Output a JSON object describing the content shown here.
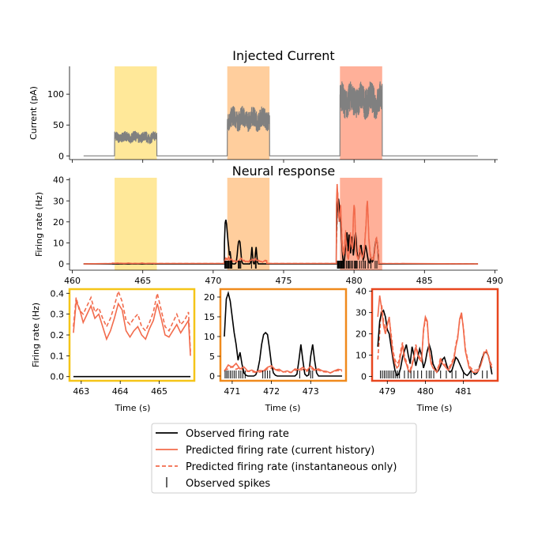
{
  "colors": {
    "current_line": "#808080",
    "observed": "#000000",
    "predicted": "#f26b4c",
    "epoch1": "#ffe793",
    "epoch2": "#ffcb98",
    "epoch3": "#ffac94",
    "inset1_border": "#f5c518",
    "inset2_border": "#f08a1c",
    "inset3_border": "#e8461e"
  },
  "chart_data": [
    {
      "type": "line",
      "title": "Injected Current",
      "xlabel": "",
      "ylabel": "Current (pA)",
      "xlim": [
        459.8,
        490.2
      ],
      "ylim": [
        -6,
        145
      ],
      "yticks": [
        "0",
        "50",
        "100"
      ],
      "epochs": [
        [
          463,
          466
        ],
        [
          471,
          474
        ],
        [
          479,
          482
        ]
      ],
      "current_levels": [
        30,
        60,
        90
      ],
      "baseline": 0,
      "x_range": [
        460.8,
        488.8
      ]
    },
    {
      "type": "line",
      "title": "Neural response",
      "xlabel": "",
      "ylabel": "Firing rate (Hz)",
      "xlim": [
        459.8,
        490.2
      ],
      "ylim": [
        -3,
        41
      ],
      "xticks": [
        "460",
        "465",
        "470",
        "475",
        "480",
        "485",
        "490"
      ],
      "yticks": [
        "0",
        "10",
        "20",
        "30",
        "40"
      ],
      "epochs": [
        [
          463,
          466
        ],
        [
          471,
          474
        ],
        [
          479,
          482
        ]
      ]
    },
    {
      "type": "line",
      "title": "",
      "xlabel": "Time (s)",
      "ylabel": "Firing rate (Hz)",
      "xlim": [
        462.7,
        465.9
      ],
      "ylim": [
        -0.02,
        0.42
      ],
      "xticks": [
        "463",
        "464",
        "465"
      ],
      "yticks": [
        "0.0",
        "0.1",
        "0.2",
        "0.3",
        "0.4"
      ],
      "observed_x": [
        462.8,
        465.8
      ],
      "observed_y": [
        0,
        0
      ],
      "pred_x": [
        462.8,
        462.87,
        462.95,
        463.05,
        463.15,
        463.25,
        463.35,
        463.45,
        463.55,
        463.65,
        463.75,
        463.85,
        463.95,
        464.05,
        464.15,
        464.25,
        464.35,
        464.45,
        464.55,
        464.65,
        464.75,
        464.85,
        464.95,
        465.05,
        465.15,
        465.25,
        465.35,
        465.45,
        465.55,
        465.65,
        465.75,
        465.8
      ],
      "pred_history": [
        0.21,
        0.36,
        0.33,
        0.26,
        0.3,
        0.34,
        0.28,
        0.3,
        0.24,
        0.18,
        0.22,
        0.28,
        0.35,
        0.32,
        0.22,
        0.19,
        0.22,
        0.24,
        0.2,
        0.18,
        0.23,
        0.27,
        0.35,
        0.28,
        0.2,
        0.19,
        0.22,
        0.25,
        0.21,
        0.24,
        0.27,
        0.1
      ],
      "pred_instant": [
        0.24,
        0.38,
        0.32,
        0.3,
        0.34,
        0.38,
        0.31,
        0.33,
        0.28,
        0.24,
        0.28,
        0.34,
        0.41,
        0.36,
        0.27,
        0.25,
        0.28,
        0.3,
        0.24,
        0.22,
        0.26,
        0.31,
        0.4,
        0.32,
        0.24,
        0.22,
        0.26,
        0.3,
        0.25,
        0.27,
        0.31,
        0.12
      ],
      "spikes": []
    },
    {
      "type": "line",
      "title": "",
      "xlabel": "Time (s)",
      "ylabel": "",
      "xlim": [
        470.7,
        473.9
      ],
      "ylim": [
        -1.2,
        22
      ],
      "xticks": [
        "471",
        "472",
        "473"
      ],
      "yticks": [
        "0",
        "5",
        "10",
        "15",
        "20"
      ],
      "observed_x": [
        470.8,
        470.85,
        470.9,
        470.95,
        471.0,
        471.05,
        471.1,
        471.15,
        471.2,
        471.25,
        471.3,
        471.35,
        471.4,
        471.45,
        471.5,
        471.55,
        471.6,
        471.65,
        471.7,
        471.75,
        471.8,
        471.85,
        471.9,
        471.95,
        472.0,
        472.05,
        472.1,
        472.15,
        472.2,
        472.25,
        472.3,
        472.35,
        472.4,
        472.45,
        472.5,
        472.55,
        472.6,
        472.65,
        472.7,
        472.75,
        472.8,
        472.85,
        472.9,
        472.95,
        473.0,
        473.05,
        473.1,
        473.15,
        473.2,
        473.3,
        473.4,
        473.5,
        473.6,
        473.7,
        473.8
      ],
      "observed_y": [
        10,
        19.5,
        21,
        19,
        15,
        11,
        8,
        4,
        6,
        3,
        0.8,
        0.2,
        0,
        0,
        0,
        0,
        0.3,
        1.5,
        4,
        8,
        10.5,
        11,
        10.5,
        7,
        3,
        0.8,
        0.2,
        0,
        0,
        0,
        0,
        0,
        0,
        0,
        0,
        0,
        0,
        0.5,
        4,
        8,
        4,
        0.5,
        0,
        0.3,
        5,
        8,
        4,
        0.8,
        0,
        0,
        0,
        0,
        0,
        0,
        0
      ],
      "pred_x": [
        470.8,
        470.9,
        471.0,
        471.1,
        471.2,
        471.3,
        471.4,
        471.5,
        471.6,
        471.7,
        471.8,
        471.9,
        472.0,
        472.1,
        472.2,
        472.3,
        472.4,
        472.5,
        472.6,
        472.7,
        472.8,
        472.9,
        473.0,
        473.1,
        473.2,
        473.3,
        473.4,
        473.5,
        473.6,
        473.7,
        473.8
      ],
      "pred_history": [
        1.2,
        2.8,
        2.2,
        3.2,
        1.8,
        2.3,
        1.2,
        1.5,
        1.0,
        1.4,
        1.3,
        2.2,
        2.6,
        1.6,
        1.7,
        1.0,
        1.3,
        0.9,
        1.8,
        1.6,
        2.2,
        1.4,
        2.5,
        1.6,
        1.8,
        1.3,
        1.2,
        0.8,
        1.3,
        1.7,
        1.5
      ],
      "pred_instant": [
        1.5,
        1.8,
        2.4,
        1.7,
        2.2,
        1.3,
        1.2,
        1.1,
        0.9,
        1.0,
        1.2,
        1.8,
        2.0,
        1.5,
        1.3,
        1.1,
        1.0,
        0.9,
        1.5,
        1.3,
        1.7,
        1.2,
        2.0,
        1.4,
        1.5,
        1.1,
        1.0,
        0.8,
        1.2,
        1.4,
        1.2
      ],
      "spikes": [
        470.82,
        470.86,
        470.9,
        470.95,
        471.0,
        471.05,
        471.1,
        471.17,
        471.22,
        471.27,
        471.33,
        471.78,
        471.84,
        471.9,
        471.96,
        472.72,
        473.0,
        473.05
      ]
    },
    {
      "type": "line",
      "title": "",
      "xlabel": "Time (s)",
      "ylabel": "",
      "xlim": [
        478.6,
        481.9
      ],
      "ylim": [
        -2,
        41
      ],
      "xticks": [
        "479",
        "480",
        "481"
      ],
      "yticks": [
        "0",
        "10",
        "20",
        "30",
        "40"
      ],
      "observed_x": [
        478.75,
        478.8,
        478.85,
        478.9,
        478.95,
        479.0,
        479.05,
        479.1,
        479.15,
        479.2,
        479.25,
        479.3,
        479.35,
        479.4,
        479.45,
        479.5,
        479.55,
        479.6,
        479.65,
        479.7,
        479.75,
        479.8,
        479.85,
        479.9,
        479.95,
        480.0,
        480.05,
        480.1,
        480.15,
        480.2,
        480.25,
        480.3,
        480.35,
        480.4,
        480.45,
        480.5,
        480.55,
        480.6,
        480.65,
        480.7,
        480.75,
        480.8,
        480.85,
        480.9,
        480.95,
        481.0,
        481.05,
        481.1,
        481.15,
        481.2,
        481.25,
        481.3,
        481.35,
        481.4,
        481.45,
        481.5,
        481.55,
        481.6,
        481.65,
        481.7,
        481.75
      ],
      "observed_y": [
        14,
        26,
        30,
        31,
        28,
        22,
        20,
        14,
        8,
        3,
        0.5,
        1,
        4,
        9,
        12,
        15,
        10,
        6,
        14,
        10,
        5,
        9,
        13,
        10,
        4,
        7,
        12,
        15,
        12,
        6,
        4,
        2,
        3,
        5,
        8,
        9,
        6,
        3,
        2,
        3,
        6,
        9,
        8,
        6,
        4,
        2,
        1,
        0.5,
        1.5,
        3,
        2,
        1,
        1.5,
        3,
        6,
        9,
        11,
        11.5,
        10,
        6,
        1
      ],
      "pred_x": [
        478.75,
        478.8,
        478.85,
        478.9,
        478.95,
        479.0,
        479.05,
        479.1,
        479.15,
        479.2,
        479.25,
        479.3,
        479.35,
        479.4,
        479.45,
        479.5,
        479.55,
        479.6,
        479.65,
        479.7,
        479.75,
        479.8,
        479.85,
        479.9,
        479.95,
        480.0,
        480.05,
        480.1,
        480.15,
        480.2,
        480.25,
        480.3,
        480.35,
        480.4,
        480.45,
        480.5,
        480.55,
        480.6,
        480.65,
        480.7,
        480.75,
        480.8,
        480.85,
        480.9,
        480.95,
        481.0,
        481.05,
        481.1,
        481.15,
        481.2,
        481.25,
        481.3,
        481.35,
        481.4,
        481.45,
        481.5,
        481.55,
        481.6,
        481.65,
        481.7,
        481.75
      ],
      "pred_history": [
        28,
        38,
        32,
        24,
        20,
        24,
        28,
        18,
        10,
        6,
        4,
        5,
        10,
        15,
        8,
        6,
        3,
        2,
        5,
        9,
        14,
        10,
        8,
        7,
        22,
        28,
        26,
        12,
        6,
        4,
        3,
        2,
        4,
        8,
        6,
        5,
        4,
        3,
        4,
        6,
        8,
        14,
        18,
        27,
        30,
        22,
        12,
        8,
        4,
        3,
        2,
        2,
        2,
        3,
        5,
        8,
        11,
        12,
        10,
        6,
        4
      ],
      "pred_instant": [
        8,
        20,
        34,
        26,
        22,
        25,
        27,
        20,
        12,
        8,
        6,
        7,
        12,
        16,
        10,
        7,
        4,
        3,
        6,
        10,
        15,
        11,
        9,
        8,
        21,
        27,
        25,
        13,
        7,
        5,
        4,
        3,
        5,
        9,
        7,
        6,
        5,
        4,
        5,
        7,
        9,
        15,
        19,
        26,
        29,
        23,
        13,
        9,
        5,
        4,
        3,
        3,
        3,
        4,
        6,
        9,
        12,
        12.5,
        10,
        7,
        5
      ],
      "spikes": [
        478.82,
        478.87,
        478.92,
        478.97,
        479.02,
        479.07,
        479.12,
        479.17,
        479.22,
        479.27,
        479.32,
        479.45,
        479.55,
        479.62,
        479.7,
        479.8,
        479.9,
        480.03,
        480.1,
        480.15,
        480.22,
        480.4,
        480.55,
        480.7,
        480.8,
        481.0,
        481.2,
        481.5,
        481.62
      ]
    }
  ],
  "legend": {
    "observed": "Observed firing rate",
    "history": "Predicted firing rate (current history)",
    "instant": "Predicted firing rate (instantaneous only)",
    "spikes": "Observed spikes"
  }
}
